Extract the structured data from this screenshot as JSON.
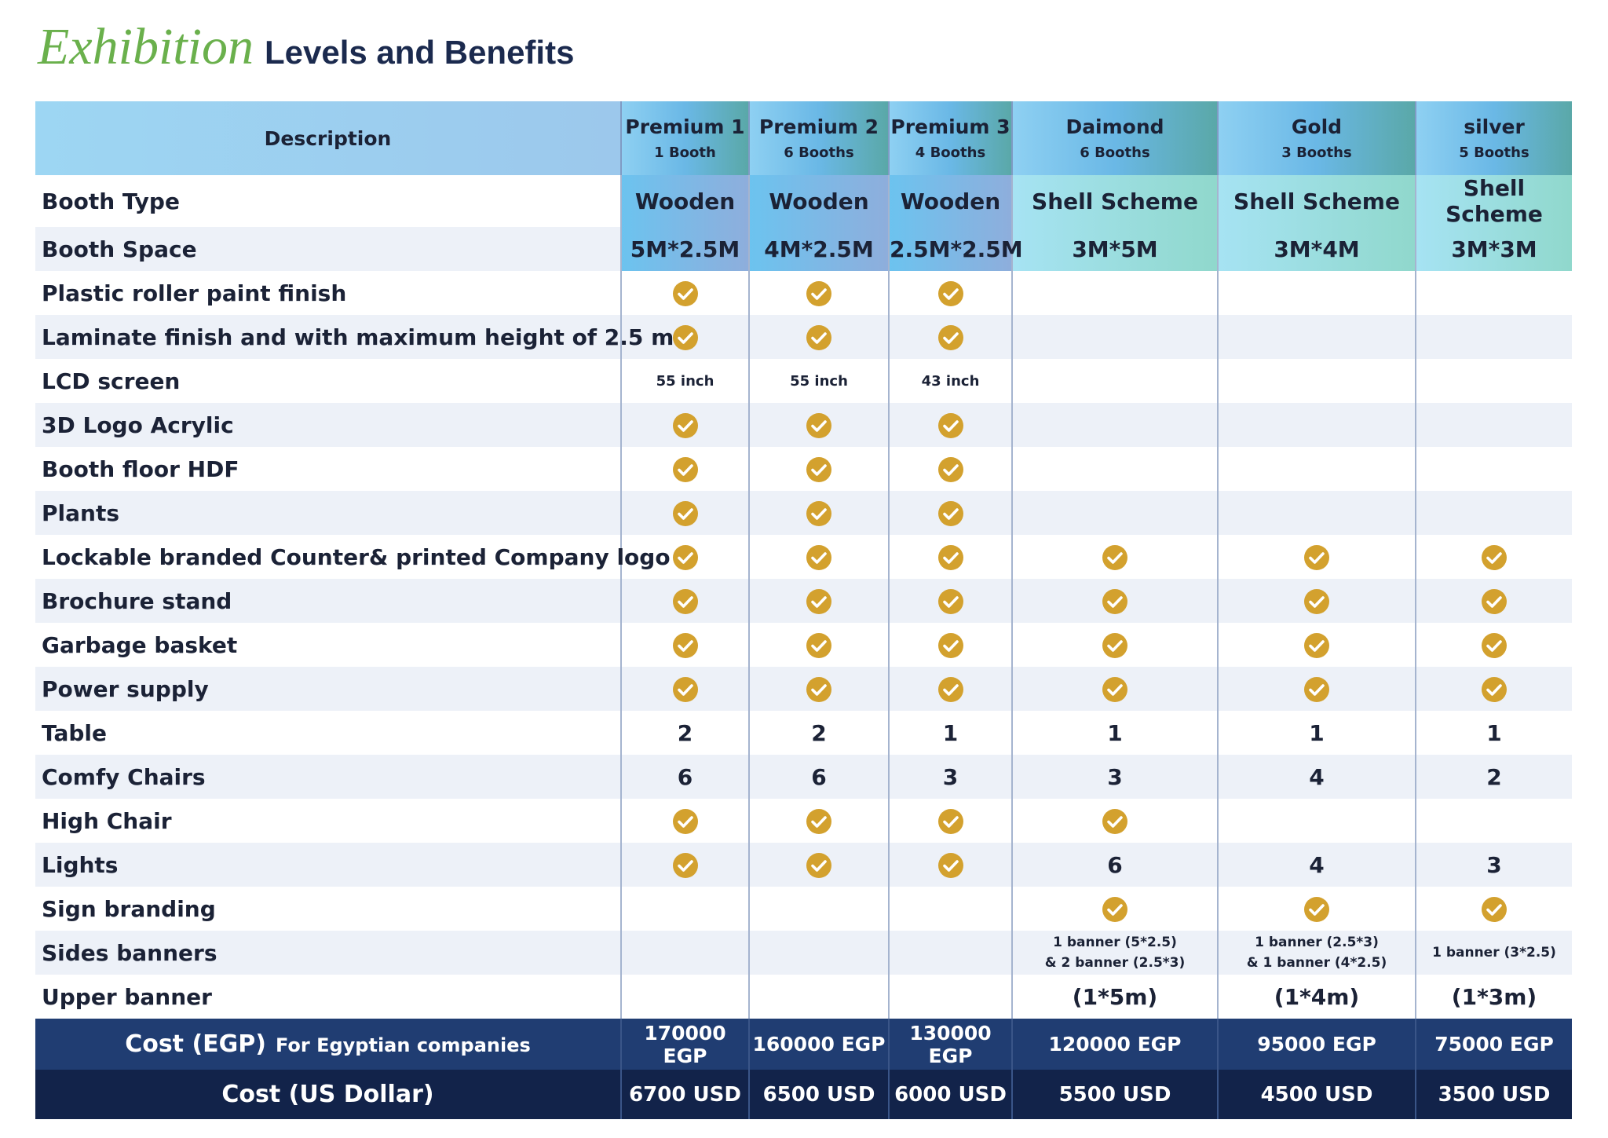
{
  "header": {
    "title_script": "Exhibition",
    "title": "Levels and Benefits"
  },
  "table": {
    "description_header": "Description",
    "levels": [
      {
        "name": "Premium 1",
        "booths": "1 Booth"
      },
      {
        "name": "Premium 2",
        "booths": "6 Booths"
      },
      {
        "name": "Premium 3",
        "booths": "4 Booths"
      },
      {
        "name": "Daimond",
        "booths": "6 Booths"
      },
      {
        "name": "Gold",
        "booths": "3 Booths"
      },
      {
        "name": "silver",
        "booths": "5 Booths"
      }
    ],
    "rows": [
      {
        "label": "Booth Type",
        "cells": [
          "Wooden",
          "Wooden",
          "Wooden",
          "Shell Scheme",
          "Shell Scheme",
          "Shell Scheme"
        ]
      },
      {
        "label": "Booth Space",
        "cells": [
          "5M*2.5M",
          "4M*2.5M",
          "2.5M*2.5M",
          "3M*5M",
          "3M*4M",
          "3M*3M"
        ]
      },
      {
        "label": "Plastic roller paint finish",
        "cells": [
          true,
          true,
          true,
          null,
          null,
          null
        ]
      },
      {
        "label": "Laminate finish and with maximum height of 2.5 m",
        "cells": [
          true,
          true,
          true,
          null,
          null,
          null
        ]
      },
      {
        "label": "LCD screen",
        "cells": [
          "55 inch",
          "55 inch",
          "43 inch",
          null,
          null,
          null
        ]
      },
      {
        "label": "3D Logo Acrylic",
        "cells": [
          true,
          true,
          true,
          null,
          null,
          null
        ]
      },
      {
        "label": "Booth floor HDF",
        "cells": [
          true,
          true,
          true,
          null,
          null,
          null
        ]
      },
      {
        "label": "Plants",
        "cells": [
          true,
          true,
          true,
          null,
          null,
          null
        ]
      },
      {
        "label": "Lockable branded Counter& printed Company logo",
        "cells": [
          true,
          true,
          true,
          true,
          true,
          true
        ]
      },
      {
        "label": "Brochure stand",
        "cells": [
          true,
          true,
          true,
          true,
          true,
          true
        ]
      },
      {
        "label": "Garbage basket",
        "cells": [
          true,
          true,
          true,
          true,
          true,
          true
        ]
      },
      {
        "label": "Power supply",
        "cells": [
          true,
          true,
          true,
          true,
          true,
          true
        ]
      },
      {
        "label": "Table",
        "cells": [
          2,
          2,
          1,
          1,
          1,
          1
        ]
      },
      {
        "label": "Comfy Chairs",
        "cells": [
          6,
          6,
          3,
          3,
          4,
          2
        ]
      },
      {
        "label": "High Chair",
        "cells": [
          true,
          true,
          true,
          true,
          null,
          null
        ]
      },
      {
        "label": "Lights",
        "cells": [
          true,
          true,
          true,
          6,
          4,
          3
        ]
      },
      {
        "label": "Sign branding",
        "cells": [
          null,
          null,
          null,
          true,
          true,
          true
        ]
      },
      {
        "label": "Sides banners",
        "cells": [
          null,
          null,
          null,
          [
            "1 banner  (5*2.5)",
            "& 2 banner (2.5*3)"
          ],
          [
            "1 banner (2.5*3)",
            "& 1 banner (4*2.5)"
          ],
          [
            "1 banner (3*2.5)"
          ]
        ]
      },
      {
        "label": "Upper banner",
        "cells": [
          null,
          null,
          null,
          "(1*5m)",
          "(1*4m)",
          "(1*3m)"
        ]
      }
    ],
    "costs": [
      {
        "label": "Cost (EGP)",
        "note": "For Egyptian companies",
        "cells": [
          "170000 EGP",
          "160000 EGP",
          "130000 EGP",
          "120000 EGP",
          "95000 EGP",
          "75000 EGP"
        ]
      },
      {
        "label": "Cost (US Dollar)",
        "cells": [
          "6700 USD",
          "6500 USD",
          "6000 USD",
          "5500 USD",
          "4500 USD",
          "3500 USD"
        ]
      }
    ]
  }
}
